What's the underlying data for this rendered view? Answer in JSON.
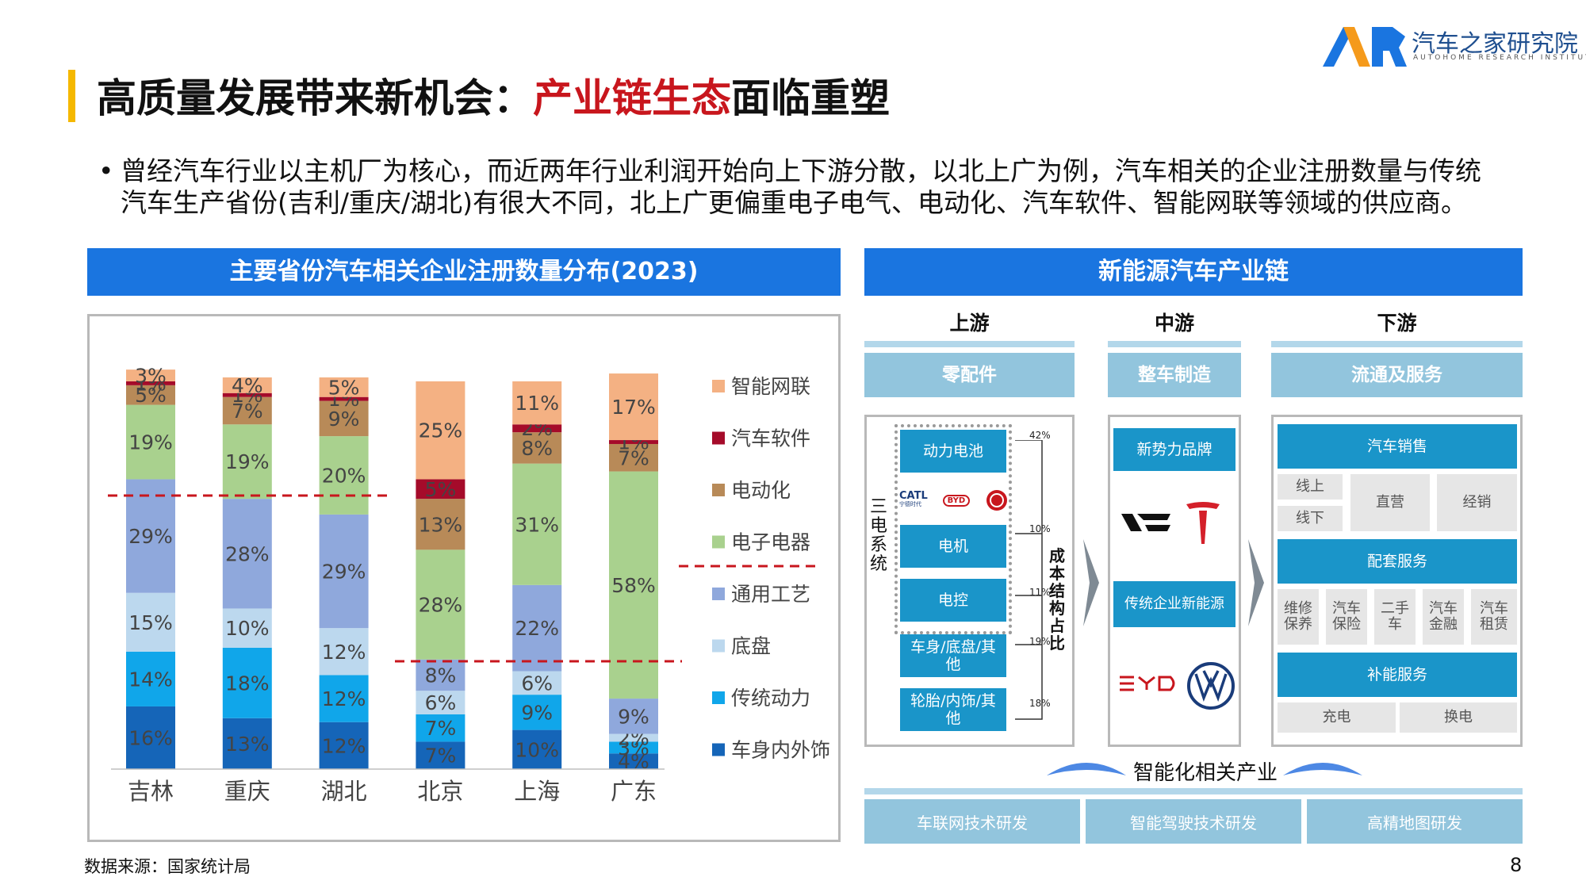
{
  "header": {
    "title_part1": "高质量发展带来新机会：",
    "title_highlight": "产业链生态",
    "title_part2": "面临重塑",
    "logo_cn": "汽车之家研究院",
    "logo_en": "AUTOHOME RESEARCH INSTITUTE",
    "logo_mark": "AR"
  },
  "bullet": {
    "dot": "•",
    "text": "曾经汽车行业以主机厂为核心，而近两年行业利润开始向上下游分散，以北上广为例，汽车相关的企业注册数量与传统汽车生产省份(吉利/重庆/湖北)有很大不同，北上广更偏重电子电气、电动化、汽车软件、智能网联等领域的供应商。"
  },
  "left_panel": {
    "header": "主要省份汽车相关企业注册数量分布(2023)"
  },
  "chart_data": {
    "type": "bar",
    "stacked": true,
    "percent": true,
    "categories": [
      "吉林",
      "重庆",
      "湖北",
      "北京",
      "上海",
      "广东"
    ],
    "series": [
      {
        "name": "车身内外饰",
        "color": "#1565b8",
        "values": [
          16,
          13,
          12,
          7,
          10,
          4
        ]
      },
      {
        "name": "传统动力",
        "color": "#10a6ea",
        "values": [
          14,
          18,
          12,
          7,
          9,
          3
        ]
      },
      {
        "name": "底盘",
        "color": "#bcd8ee",
        "values": [
          15,
          10,
          12,
          6,
          6,
          2
        ]
      },
      {
        "name": "通用工艺",
        "color": "#8fa8dc",
        "values": [
          29,
          28,
          29,
          8,
          22,
          9
        ]
      },
      {
        "name": "电子电器",
        "color": "#a9d18e",
        "values": [
          19,
          19,
          20,
          28,
          31,
          58
        ]
      },
      {
        "name": "电动化",
        "color": "#b88a58",
        "values": [
          5,
          7,
          9,
          13,
          8,
          7
        ]
      },
      {
        "name": "汽车软件",
        "color": "#a50b2a",
        "values": [
          1,
          1,
          1,
          5,
          2,
          1
        ]
      },
      {
        "name": "智能网联",
        "color": "#f4b183",
        "values": [
          3,
          4,
          5,
          25,
          11,
          17
        ]
      }
    ],
    "legend_position": "right",
    "ylim": [
      0,
      100
    ],
    "reference_lines": "dashed red"
  },
  "source": "数据来源：国家统计局",
  "page_number": "8",
  "right_panel": {
    "header": "新能源汽车产业链",
    "upstream": {
      "stage": "上游",
      "box": "零配件",
      "three_elec_label": "三电系统",
      "items": [
        "动力电池",
        "电机",
        "电控",
        "车身/底盘/其他",
        "轮胎/内饰/其他"
      ],
      "brands": [
        "CATL",
        "宁德时代",
        "BYD"
      ],
      "pcts": [
        "42%",
        "10%",
        "11%",
        "19%",
        "18%"
      ],
      "cost_label": "成本结构占比"
    },
    "midstream": {
      "stage": "中游",
      "box": "整车制造",
      "items": [
        "新势力品牌",
        "传统企业新能源"
      ]
    },
    "downstream": {
      "stage": "下游",
      "box": "流通及服务",
      "sales": "汽车销售",
      "online": "线上",
      "offline": "线下",
      "direct": "直营",
      "dealer": "经销",
      "support_service": "配套服务",
      "services": [
        "维修保养",
        "汽车保险",
        "二手车",
        "汽车金融",
        "汽车租赁"
      ],
      "energy_service": "补能服务",
      "charge": "充电",
      "swap": "换电"
    },
    "intelligence_label": "智能化相关产业",
    "bottom_items": [
      "车联网技术研发",
      "智能驾驶技术研发",
      "高精地图研发"
    ]
  }
}
